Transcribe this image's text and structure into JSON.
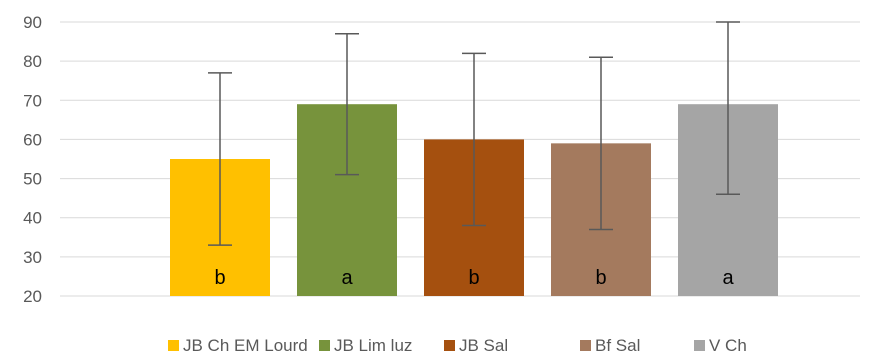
{
  "chart_data": {
    "type": "bar",
    "categories": [
      "JB Ch EM Lourd",
      "JB Lim luz",
      "JB Sal",
      "Bf Sal",
      "V Ch"
    ],
    "values": [
      55,
      69,
      60,
      59,
      69
    ],
    "error_low": [
      33,
      51,
      38,
      37,
      46
    ],
    "error_high": [
      77,
      87,
      82,
      81,
      90
    ],
    "bar_labels": [
      "b",
      "a",
      "b",
      "b",
      "a"
    ],
    "colors": [
      "#FFC000",
      "#77933C",
      "#A5500F",
      "#A47A5E",
      "#A5A5A5"
    ],
    "title": "",
    "xlabel": "",
    "ylabel": "",
    "ylim": [
      20,
      90
    ],
    "yticks": [
      20,
      30,
      40,
      50,
      60,
      70,
      80,
      90
    ],
    "grid": true,
    "legend": {
      "position": "bottom",
      "entries": [
        "JB Ch EM Lourd",
        "JB Lim luz",
        "JB Sal",
        "Bf Sal",
        "V Ch"
      ]
    }
  }
}
